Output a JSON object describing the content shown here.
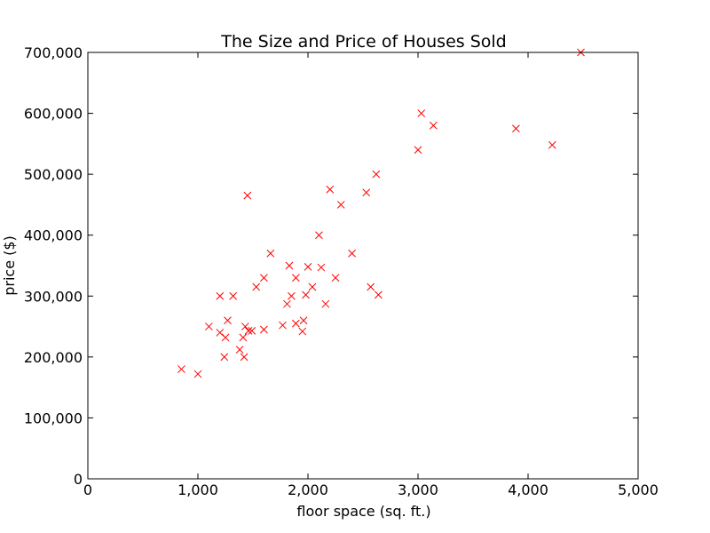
{
  "chart_data": {
    "type": "scatter",
    "title": "The Size and Price of Houses Sold",
    "xlabel": "floor space (sq. ft.)",
    "ylabel": "price ($)",
    "xlim": [
      0,
      5000
    ],
    "ylim": [
      0,
      700000
    ],
    "xticks": [
      0,
      1000,
      2000,
      3000,
      4000,
      5000
    ],
    "yticks": [
      0,
      100000,
      200000,
      300000,
      400000,
      500000,
      600000,
      700000
    ],
    "xtick_labels": [
      "0",
      "1,000",
      "2,000",
      "3,000",
      "4,000",
      "5,000"
    ],
    "ytick_labels": [
      "0",
      "100,000",
      "200,000",
      "300,000",
      "400,000",
      "500,000",
      "600,000",
      "700,000"
    ],
    "grid": false,
    "marker": "x",
    "marker_color": "#ff0000",
    "x": [
      850,
      1000,
      1100,
      1200,
      1200,
      1240,
      1250,
      1270,
      1320,
      1380,
      1410,
      1420,
      1430,
      1450,
      1460,
      1490,
      1530,
      1600,
      1600,
      1660,
      1770,
      1810,
      1830,
      1850,
      1890,
      1890,
      1950,
      1960,
      1980,
      2000,
      2040,
      2100,
      2120,
      2160,
      2200,
      2250,
      2300,
      2400,
      2530,
      2570,
      2620,
      2640,
      3000,
      3030,
      3140,
      3890,
      4220,
      4480
    ],
    "y": [
      180000,
      172000,
      250000,
      240000,
      300000,
      200000,
      232000,
      260000,
      300000,
      212000,
      232000,
      200000,
      250000,
      465000,
      243000,
      243000,
      315000,
      330000,
      245000,
      370000,
      252000,
      287000,
      350000,
      300000,
      330000,
      255000,
      242000,
      260000,
      302000,
      348000,
      315000,
      400000,
      347000,
      287000,
      475000,
      330000,
      450000,
      370000,
      470000,
      315000,
      500000,
      302000,
      540000,
      600000,
      580000,
      575000,
      548000,
      700000
    ]
  }
}
